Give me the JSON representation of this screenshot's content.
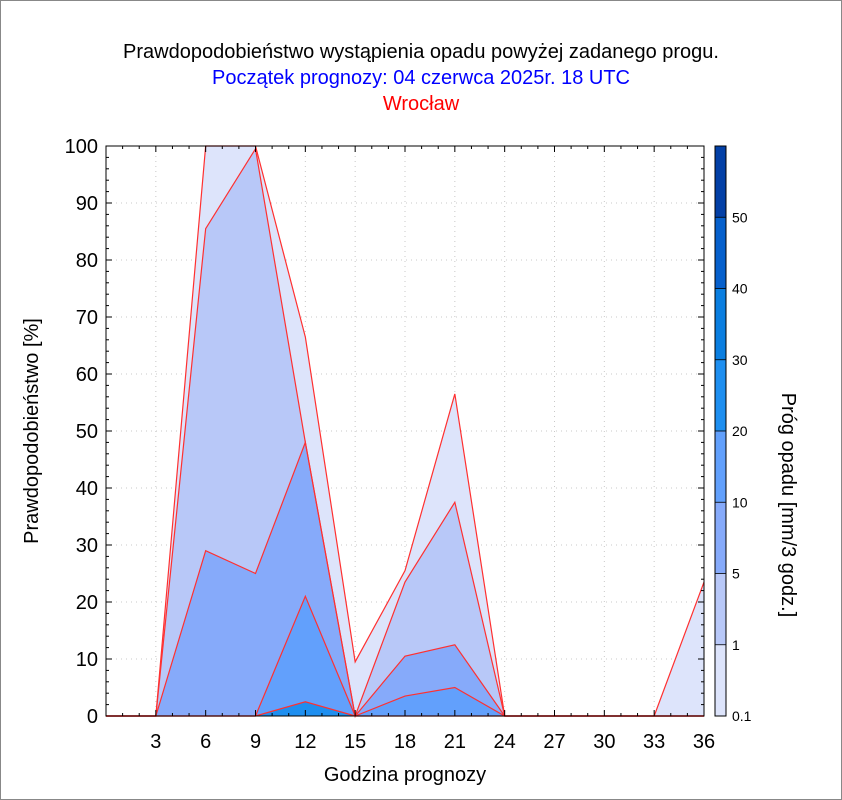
{
  "chart_data": {
    "type": "area",
    "title": "Prawdopodobieństwo wystąpienia opadu powyżej zadanego progu.",
    "subtitle": "Początek prognozy: 04 czerwca 2025r. 18 UTC",
    "location": "Wrocław",
    "xlabel": "Godzina prognozy",
    "ylabel": "Prawdopodobieństwo [%]",
    "colorbar_label": "Próg opadu [mm/3 godz.]",
    "xlim": [
      0,
      36
    ],
    "ylim": [
      0,
      100
    ],
    "x_ticks": [
      "3",
      "6",
      "9",
      "12",
      "15",
      "18",
      "21",
      "24",
      "27",
      "30",
      "33",
      "36"
    ],
    "y_ticks": [
      "0",
      "10",
      "20",
      "30",
      "40",
      "50",
      "60",
      "70",
      "80",
      "90",
      "100"
    ],
    "grid": true,
    "x": [
      0,
      3,
      6,
      9,
      12,
      15,
      18,
      21,
      24,
      27,
      30,
      33,
      36
    ],
    "series": [
      {
        "threshold": "0.1",
        "color": "#dde4fb",
        "values": [
          0,
          0,
          100,
          100,
          66.5,
          9.5,
          25.5,
          56.5,
          0,
          0,
          0,
          0,
          23.5
        ]
      },
      {
        "threshold": "1",
        "color": "#b8c8f8",
        "values": [
          0,
          0,
          85.5,
          99.5,
          48,
          0,
          23.5,
          37.5,
          0,
          0,
          0,
          0,
          0
        ]
      },
      {
        "threshold": "5",
        "color": "#86aafa",
        "values": [
          0,
          0,
          29,
          25,
          48,
          0,
          10.5,
          12.5,
          0,
          0,
          0,
          0,
          0
        ]
      },
      {
        "threshold": "10",
        "color": "#62a0fc",
        "values": [
          0,
          0,
          0,
          0,
          21,
          0,
          3.5,
          5,
          0,
          0,
          0,
          0,
          0
        ]
      },
      {
        "threshold": "20",
        "color": "#1e8ff0",
        "values": [
          0,
          0,
          0,
          0,
          2.5,
          0,
          0,
          0,
          0,
          0,
          0,
          0,
          0
        ]
      }
    ],
    "colorbar": {
      "ticks": [
        "0.1",
        "1",
        "5",
        "10",
        "20",
        "30",
        "40",
        "50"
      ],
      "colors": [
        "#dde4fb",
        "#b8c8f8",
        "#86aafa",
        "#62a0fc",
        "#1e8ff0",
        "#0a7ee0",
        "#0660cc",
        "#0340a6"
      ]
    },
    "line_color": "#ff3030"
  }
}
